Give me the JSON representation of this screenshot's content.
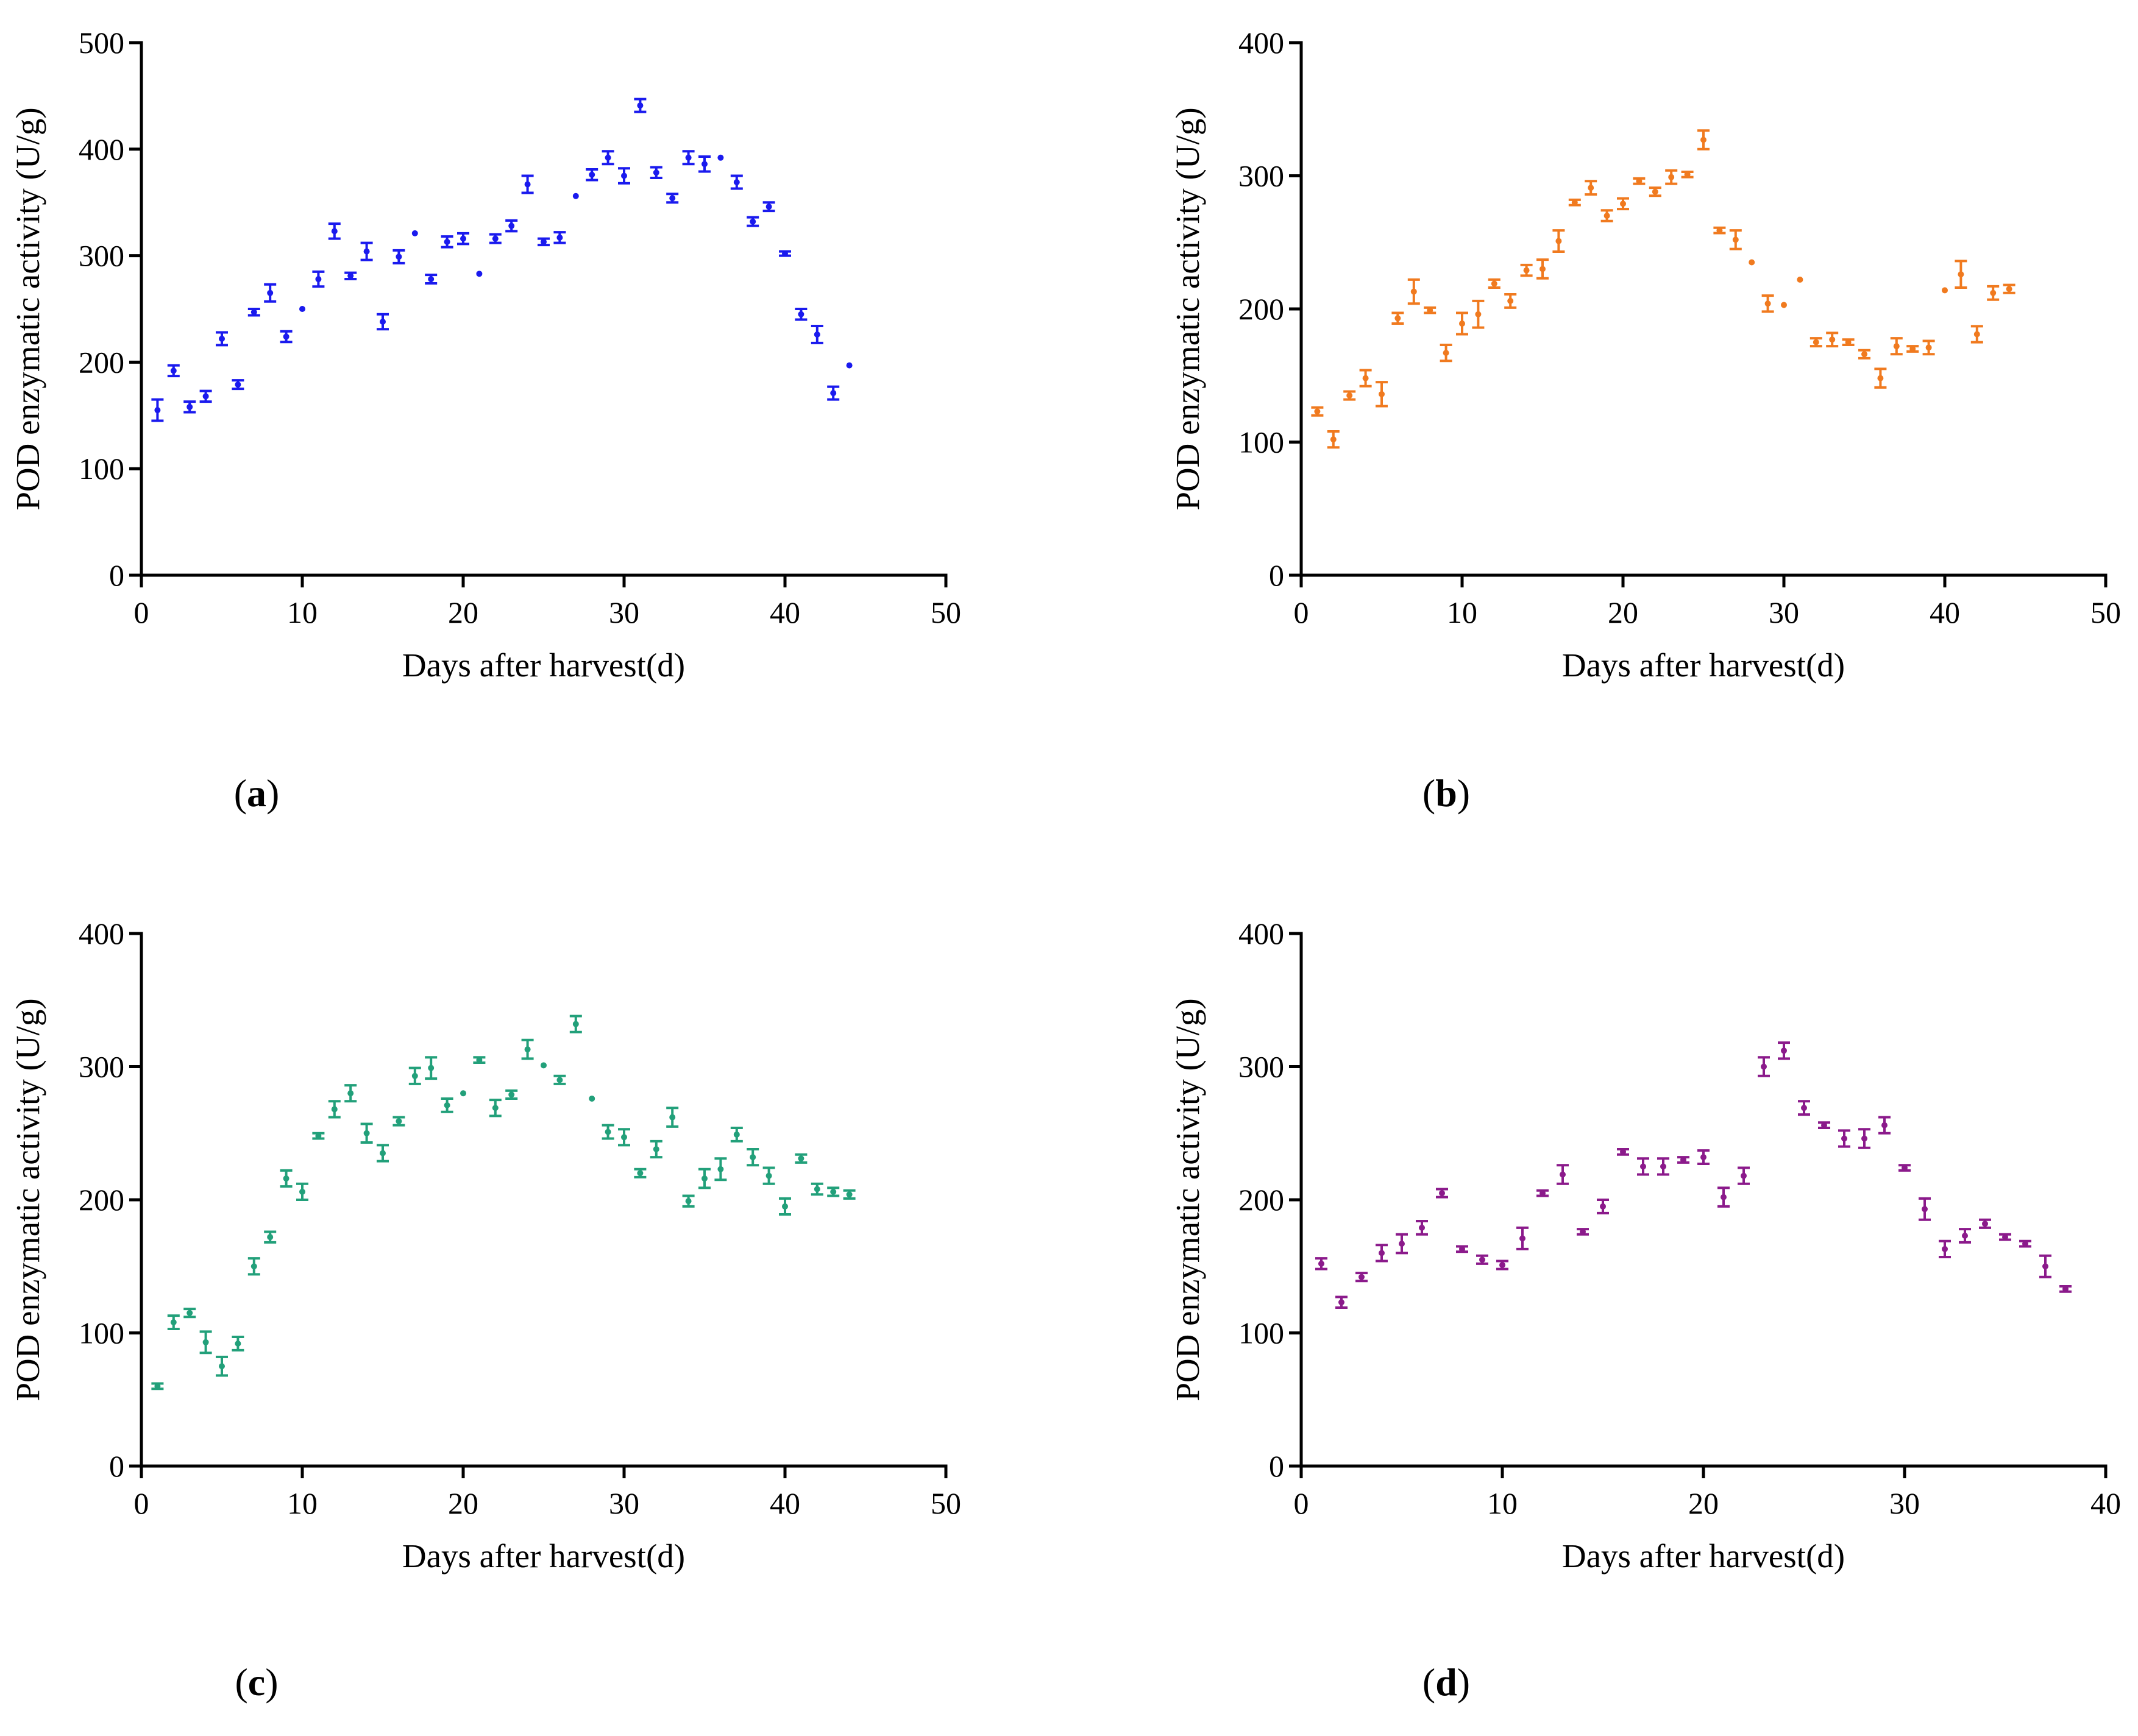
{
  "figure": {
    "panels": [
      {
        "label": "a",
        "open_paren": "(",
        "close_paren": ")"
      },
      {
        "label": "b",
        "open_paren": "(",
        "close_paren": ")"
      },
      {
        "label": "c",
        "open_paren": "(",
        "close_paren": ")"
      },
      {
        "label": "d",
        "open_paren": "(",
        "close_paren": ")"
      }
    ]
  },
  "chart_data": [
    {
      "type": "scatter",
      "panel": "a",
      "xlabel": "Days after harvest(d)",
      "ylabel": "POD enzymatic activity (U/g)",
      "xlim": [
        0,
        50
      ],
      "ylim": [
        0,
        500
      ],
      "xticks": [
        0,
        10,
        20,
        30,
        40,
        50
      ],
      "yticks": [
        0,
        100,
        200,
        300,
        400,
        500
      ],
      "color": "#1a1aee",
      "error_bars": true,
      "x": [
        1,
        2,
        3,
        4,
        5,
        6,
        7,
        8,
        9,
        10,
        11,
        12,
        13,
        14,
        15,
        16,
        17,
        18,
        19,
        20,
        21,
        22,
        23,
        24,
        25,
        26,
        27,
        28,
        29,
        30,
        31,
        32,
        33,
        34,
        35,
        36,
        37,
        38,
        39,
        40,
        41,
        42,
        43,
        44
      ],
      "y": [
        155,
        192,
        158,
        168,
        222,
        179,
        247,
        265,
        224,
        250,
        278,
        323,
        281,
        304,
        238,
        299,
        321,
        278,
        313,
        316,
        283,
        316,
        328,
        367,
        313,
        317,
        356,
        376,
        392,
        375,
        441,
        378,
        354,
        392,
        386,
        392,
        369,
        332,
        346,
        302,
        245,
        226,
        171,
        197
      ],
      "err": [
        10,
        5,
        5,
        5,
        6,
        4,
        3,
        8,
        5,
        0,
        7,
        7,
        3,
        8,
        7,
        6,
        0,
        4,
        5,
        5,
        0,
        4,
        5,
        8,
        3,
        5,
        0,
        5,
        6,
        7,
        6,
        5,
        4,
        6,
        7,
        0,
        6,
        4,
        4,
        2,
        5,
        8,
        6,
        0
      ]
    },
    {
      "type": "scatter",
      "panel": "b",
      "xlabel": "Days after harvest(d)",
      "ylabel": "POD enzymatic activity (U/g)",
      "xlim": [
        0,
        50
      ],
      "ylim": [
        0,
        400
      ],
      "xticks": [
        0,
        10,
        20,
        30,
        40,
        50
      ],
      "yticks": [
        0,
        100,
        200,
        300,
        400
      ],
      "color": "#f07a1f",
      "error_bars": true,
      "x": [
        1,
        2,
        3,
        4,
        5,
        6,
        7,
        8,
        9,
        10,
        11,
        12,
        13,
        14,
        15,
        16,
        17,
        18,
        19,
        20,
        21,
        22,
        23,
        24,
        25,
        26,
        27,
        28,
        29,
        30,
        31,
        32,
        33,
        34,
        35,
        36,
        37,
        38,
        39,
        40,
        41,
        42,
        43,
        44
      ],
      "y": [
        123,
        102,
        135,
        148,
        136,
        193,
        213,
        199,
        167,
        189,
        196,
        219,
        206,
        229,
        230,
        251,
        280,
        291,
        270,
        279,
        296,
        288,
        299,
        301,
        327,
        259,
        252,
        235,
        204,
        203,
        222,
        175,
        177,
        175,
        166,
        148,
        172,
        170,
        171,
        214,
        226,
        181,
        212,
        215
      ],
      "err": [
        3,
        6,
        3,
        6,
        9,
        4,
        9,
        2,
        6,
        8,
        10,
        3,
        5,
        4,
        7,
        8,
        2,
        5,
        4,
        4,
        2,
        3,
        5,
        2,
        7,
        2,
        7,
        0,
        6,
        0,
        0,
        3,
        5,
        2,
        3,
        7,
        6,
        2,
        5,
        0,
        10,
        6,
        5,
        3
      ]
    },
    {
      "type": "scatter",
      "panel": "c",
      "xlabel": "Days after harvest(d)",
      "ylabel": "POD enzymatic activity (U/g)",
      "xlim": [
        0,
        50
      ],
      "ylim": [
        0,
        400
      ],
      "xticks": [
        0,
        10,
        20,
        30,
        40,
        50
      ],
      "yticks": [
        0,
        100,
        200,
        300,
        400
      ],
      "color": "#22a07a",
      "error_bars": true,
      "x": [
        1,
        2,
        3,
        4,
        5,
        6,
        7,
        8,
        9,
        10,
        11,
        12,
        13,
        14,
        15,
        16,
        17,
        18,
        19,
        20,
        21,
        22,
        23,
        24,
        25,
        26,
        27,
        28,
        29,
        30,
        31,
        32,
        33,
        34,
        35,
        36,
        37,
        38,
        39,
        40,
        41,
        42,
        43,
        44
      ],
      "y": [
        60,
        108,
        115,
        93,
        75,
        92,
        150,
        172,
        216,
        206,
        248,
        268,
        280,
        250,
        235,
        259,
        293,
        299,
        271,
        280,
        305,
        269,
        279,
        313,
        301,
        290,
        332,
        276,
        251,
        247,
        220,
        238,
        262,
        199,
        216,
        223,
        249,
        232,
        218,
        195,
        231,
        208,
        206,
        204
      ],
      "err": [
        2,
        5,
        3,
        8,
        7,
        5,
        6,
        4,
        6,
        6,
        2,
        6,
        6,
        7,
        6,
        3,
        6,
        8,
        5,
        0,
        2,
        6,
        3,
        7,
        0,
        3,
        6,
        0,
        5,
        6,
        3,
        6,
        7,
        4,
        7,
        8,
        5,
        6,
        6,
        6,
        3,
        4,
        3,
        3
      ]
    },
    {
      "type": "scatter",
      "panel": "d",
      "xlabel": "Days after harvest(d)",
      "ylabel": "POD enzymatic activity (U/g)",
      "xlim": [
        0,
        40
      ],
      "ylim": [
        0,
        400
      ],
      "xticks": [
        0,
        10,
        20,
        30,
        40
      ],
      "yticks": [
        0,
        100,
        200,
        300,
        400
      ],
      "color": "#8b1a8b",
      "error_bars": true,
      "x": [
        1,
        2,
        3,
        4,
        5,
        6,
        7,
        8,
        9,
        10,
        11,
        12,
        13,
        14,
        15,
        16,
        17,
        18,
        19,
        20,
        21,
        22,
        23,
        24,
        25,
        26,
        27,
        28,
        29,
        30,
        31,
        32,
        33,
        34,
        35,
        36,
        37,
        38
      ],
      "y": [
        152,
        123,
        142,
        160,
        167,
        179,
        205,
        163,
        155,
        151,
        171,
        205,
        219,
        176,
        195,
        236,
        225,
        225,
        230,
        232,
        202,
        218,
        300,
        312,
        269,
        256,
        246,
        246,
        256,
        224,
        193,
        163,
        173,
        182,
        172,
        167,
        150,
        133
      ],
      "err": [
        4,
        4,
        3,
        6,
        7,
        5,
        3,
        2,
        3,
        3,
        8,
        2,
        7,
        2,
        5,
        2,
        6,
        6,
        2,
        5,
        7,
        6,
        7,
        6,
        5,
        2,
        6,
        7,
        6,
        2,
        8,
        6,
        5,
        3,
        2,
        2,
        8,
        2
      ]
    }
  ]
}
